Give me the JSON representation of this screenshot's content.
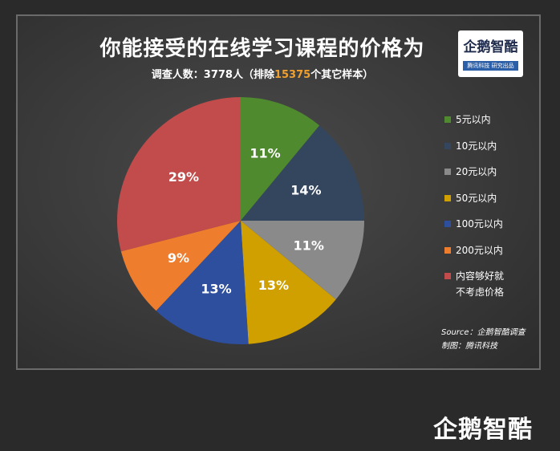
{
  "header": {
    "title": "你能接受的在线学习课程的价格为",
    "subtitle_prefix": "调查人数：3778人（排除",
    "subtitle_highlight": "15375",
    "subtitle_suffix": "个其它样本）"
  },
  "logo": {
    "name": "企鹅智酷",
    "tagline": "腾讯科技  研究出品"
  },
  "bottom_logo": {
    "name": "企鹅智酷"
  },
  "source": {
    "line1": "Source：企鹅智酷调查",
    "line2": "制图：腾讯科技"
  },
  "chart_data": {
    "type": "pie",
    "title": "你能接受的在线学习课程的价格为",
    "start_angle_deg": 0,
    "direction": "clockwise",
    "legend_position": "right",
    "slices": [
      {
        "label": "5元以内",
        "value": 11,
        "display": "11%",
        "color": "#4f8a2f"
      },
      {
        "label": "10元以内",
        "value": 14,
        "display": "14%",
        "color": "#34465e"
      },
      {
        "label": "20元以内",
        "value": 11,
        "display": "11%",
        "color": "#8a8a8a"
      },
      {
        "label": "50元以内",
        "value": 13,
        "display": "13%",
        "color": "#cfa000"
      },
      {
        "label": "100元以内",
        "value": 13,
        "display": "13%",
        "color": "#2e4f9e"
      },
      {
        "label": "200元以内",
        "value": 9,
        "display": "9%",
        "color": "#ef7d2e"
      },
      {
        "label": "内容够好就\n不考虑价格",
        "value": 29,
        "display": "29%",
        "color": "#c24c4c"
      }
    ]
  }
}
